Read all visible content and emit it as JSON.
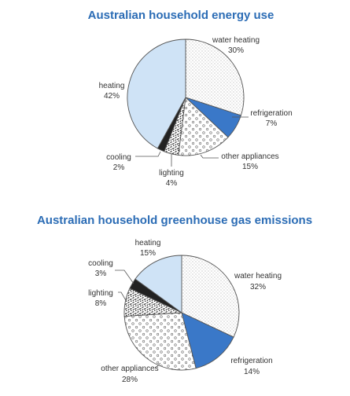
{
  "chart_data": [
    {
      "type": "pie",
      "title": "Australian household energy use",
      "title_color": "#2b6cb5",
      "slices": [
        {
          "label": "water heating",
          "value": 30,
          "value_label": "30%",
          "pattern": "dots-dense"
        },
        {
          "label": "refrigeration",
          "value": 7,
          "value_label": "7%",
          "pattern": "solid-blue"
        },
        {
          "label": "other appliances",
          "value": 15,
          "value_label": "15%",
          "pattern": "circles"
        },
        {
          "label": "lighting",
          "value": 4,
          "value_label": "4%",
          "pattern": "squiggle"
        },
        {
          "label": "cooling",
          "value": 2,
          "value_label": "2%",
          "pattern": "solid-black"
        },
        {
          "label": "heating",
          "value": 42,
          "value_label": "42%",
          "pattern": "light-blue"
        }
      ]
    },
    {
      "type": "pie",
      "title": "Australian household greenhouse gas emissions",
      "title_color": "#2b6cb5",
      "slices": [
        {
          "label": "water heating",
          "value": 32,
          "value_label": "32%",
          "pattern": "dots-dense"
        },
        {
          "label": "refrigeration",
          "value": 14,
          "value_label": "14%",
          "pattern": "solid-blue"
        },
        {
          "label": "other appliances",
          "value": 28,
          "value_label": "28%",
          "pattern": "circles"
        },
        {
          "label": "lighting",
          "value": 8,
          "value_label": "8%",
          "pattern": "squiggle"
        },
        {
          "label": "cooling",
          "value": 3,
          "value_label": "3%",
          "pattern": "solid-black"
        },
        {
          "label": "heating",
          "value": 15,
          "value_label": "15%",
          "pattern": "light-blue"
        }
      ]
    }
  ],
  "colors": {
    "title": "#2b6cb5",
    "refrigeration": "#3a78c8",
    "heating": "#cfe3f6",
    "cooling": "#222222",
    "edge": "#555555"
  }
}
